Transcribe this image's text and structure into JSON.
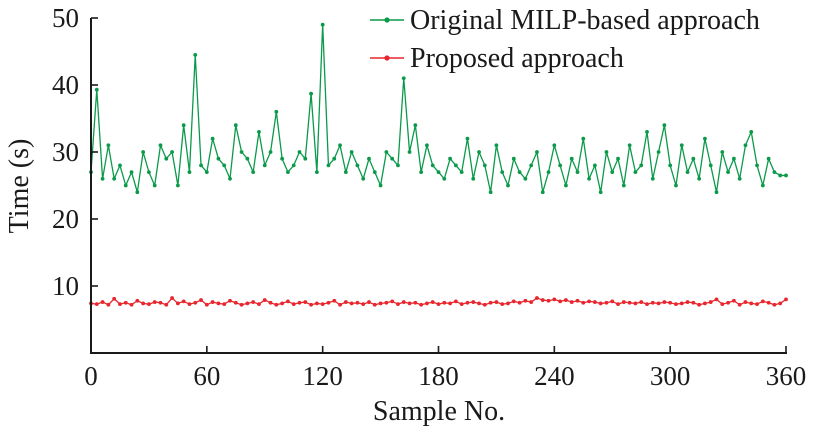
{
  "chart_data": {
    "type": "line",
    "xlabel": "Sample No.",
    "ylabel": "Time (s)",
    "xlim": [
      0,
      360
    ],
    "ylim": [
      0,
      50
    ],
    "xticks": [
      "0",
      "60",
      "120",
      "180",
      "240",
      "300",
      "360"
    ],
    "yticks": [
      "10",
      "20",
      "30",
      "40",
      "50"
    ],
    "legend_position": "top-right",
    "grid": false,
    "series": [
      {
        "name": "Original MILP-based approach",
        "color": "#0a9a4a",
        "markers": true,
        "x": [
          0,
          3,
          6,
          9,
          12,
          15,
          18,
          21,
          24,
          27,
          30,
          33,
          36,
          39,
          42,
          45,
          48,
          51,
          54,
          57,
          60,
          63,
          66,
          69,
          72,
          75,
          78,
          81,
          84,
          87,
          90,
          93,
          96,
          99,
          102,
          105,
          108,
          111,
          114,
          117,
          120,
          123,
          126,
          129,
          132,
          135,
          138,
          141,
          144,
          147,
          150,
          153,
          156,
          159,
          162,
          165,
          168,
          171,
          174,
          177,
          180,
          183,
          186,
          189,
          192,
          195,
          198,
          201,
          204,
          207,
          210,
          213,
          216,
          219,
          222,
          225,
          228,
          231,
          234,
          237,
          240,
          243,
          246,
          249,
          252,
          255,
          258,
          261,
          264,
          267,
          270,
          273,
          276,
          279,
          282,
          285,
          288,
          291,
          294,
          297,
          300,
          303,
          306,
          309,
          312,
          315,
          318,
          321,
          324,
          327,
          330,
          333,
          336,
          339,
          342,
          345,
          348,
          351,
          354,
          357,
          360
        ],
        "values": [
          27,
          39.3,
          26,
          31,
          26,
          28,
          25,
          27,
          24,
          30,
          27,
          25,
          31,
          29,
          30,
          25,
          34,
          27,
          44.5,
          28,
          27,
          32,
          29,
          28,
          26,
          34,
          30,
          29,
          27,
          33,
          28,
          30,
          36,
          29,
          27,
          28,
          30,
          29,
          38.7,
          27,
          49,
          28,
          29,
          31,
          27,
          30,
          28,
          26,
          29,
          27,
          25,
          30,
          29,
          28,
          41,
          30,
          34,
          27,
          31,
          28,
          27,
          26,
          29,
          28,
          27,
          32,
          26,
          30,
          28,
          24,
          31,
          27,
          25,
          29,
          27,
          26,
          28,
          30,
          24,
          27,
          31,
          28,
          25,
          29,
          27,
          32,
          26,
          28,
          24,
          30,
          27,
          29,
          25,
          31,
          27,
          28,
          33,
          26,
          30,
          34,
          28,
          25,
          31,
          27,
          29,
          26,
          32,
          28,
          24,
          30,
          27,
          29,
          26,
          31,
          33,
          28,
          25,
          29,
          27,
          26.5,
          26.5
        ]
      },
      {
        "name": "Proposed approach",
        "color": "#e8262e",
        "markers": true,
        "x": [
          0,
          3,
          6,
          9,
          12,
          15,
          18,
          21,
          24,
          27,
          30,
          33,
          36,
          39,
          42,
          45,
          48,
          51,
          54,
          57,
          60,
          63,
          66,
          69,
          72,
          75,
          78,
          81,
          84,
          87,
          90,
          93,
          96,
          99,
          102,
          105,
          108,
          111,
          114,
          117,
          120,
          123,
          126,
          129,
          132,
          135,
          138,
          141,
          144,
          147,
          150,
          153,
          156,
          159,
          162,
          165,
          168,
          171,
          174,
          177,
          180,
          183,
          186,
          189,
          192,
          195,
          198,
          201,
          204,
          207,
          210,
          213,
          216,
          219,
          222,
          225,
          228,
          231,
          234,
          237,
          240,
          243,
          246,
          249,
          252,
          255,
          258,
          261,
          264,
          267,
          270,
          273,
          276,
          279,
          282,
          285,
          288,
          291,
          294,
          297,
          300,
          303,
          306,
          309,
          312,
          315,
          318,
          321,
          324,
          327,
          330,
          333,
          336,
          339,
          342,
          345,
          348,
          351,
          354,
          357,
          360
        ],
        "values": [
          7.4,
          7.3,
          7.6,
          7.2,
          8.1,
          7.3,
          7.5,
          7.2,
          7.8,
          7.4,
          7.3,
          7.6,
          7.5,
          7.2,
          8.2,
          7.4,
          7.7,
          7.3,
          7.5,
          7.9,
          7.2,
          7.6,
          7.4,
          7.3,
          7.8,
          7.5,
          7.2,
          7.4,
          7.6,
          7.3,
          7.9,
          7.5,
          7.2,
          7.4,
          7.7,
          7.3,
          7.5,
          7.6,
          7.2,
          7.4,
          7.3,
          7.5,
          7.8,
          7.2,
          7.6,
          7.4,
          7.5,
          7.3,
          7.6,
          7.2,
          7.4,
          7.5,
          7.7,
          7.3,
          7.6,
          7.4,
          7.5,
          7.2,
          7.4,
          7.6,
          7.3,
          7.5,
          7.4,
          7.7,
          7.3,
          7.5,
          7.6,
          7.4,
          7.2,
          7.5,
          7.6,
          7.3,
          7.4,
          7.7,
          7.5,
          7.8,
          7.6,
          8.2,
          7.9,
          7.8,
          8.0,
          7.7,
          7.9,
          7.6,
          7.8,
          7.5,
          7.7,
          7.6,
          7.4,
          7.5,
          7.7,
          7.3,
          7.6,
          7.5,
          7.4,
          7.6,
          7.3,
          7.5,
          7.4,
          7.6,
          7.5,
          7.3,
          7.4,
          7.6,
          7.5,
          7.2,
          7.4,
          7.6,
          8.0,
          7.3,
          7.5,
          7.8,
          7.2,
          7.6,
          7.4,
          7.3,
          7.7,
          7.5,
          7.2,
          7.4,
          8.0
        ]
      }
    ]
  }
}
